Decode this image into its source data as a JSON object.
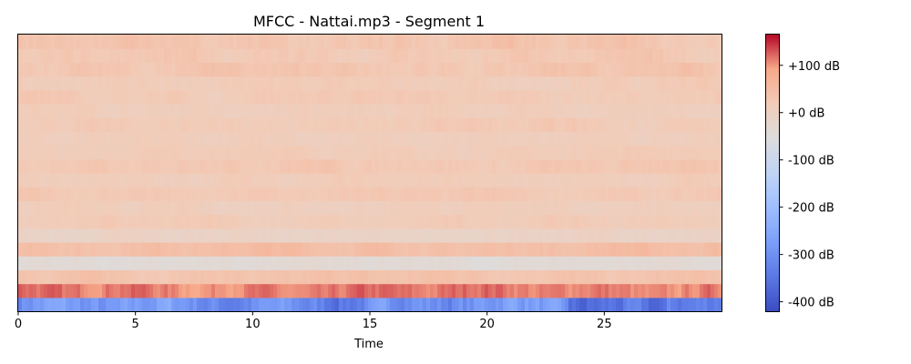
{
  "chart_data": {
    "type": "heatmap",
    "title": "MFCC - Nattai.mp3 - Segment 1",
    "xlabel": "Time",
    "ylabel": "",
    "xlim": [
      0,
      30
    ],
    "x_ticks": [
      0,
      5,
      10,
      15,
      20,
      25
    ],
    "n_coefficients": 20,
    "colormap": "coolwarm",
    "colorbar": {
      "range": [
        -420,
        165
      ],
      "ticks": [
        100,
        0,
        -100,
        -200,
        -300,
        -400
      ],
      "tick_labels": [
        "+100 dB",
        "+0 dB",
        "-100 dB",
        "-200 dB",
        "-300 dB",
        "-400 dB"
      ]
    },
    "row_profile": [
      {
        "coefficient": 0,
        "mean": -300,
        "spread": 60
      },
      {
        "coefficient": 1,
        "mean": 110,
        "spread": 22
      },
      {
        "coefficient": 2,
        "mean": 35,
        "spread": 12
      },
      {
        "coefficient": 3,
        "mean": -40,
        "spread": 10
      },
      {
        "coefficient": 4,
        "mean": 45,
        "spread": 12
      },
      {
        "coefficient": 5,
        "mean": -10,
        "spread": 10
      },
      {
        "coefficient": 6,
        "mean": 15,
        "spread": 10
      },
      {
        "coefficient": 7,
        "mean": 8,
        "spread": 10
      },
      {
        "coefficient": 8,
        "mean": 22,
        "spread": 10
      },
      {
        "coefficient": 9,
        "mean": 12,
        "spread": 10
      },
      {
        "coefficient": 10,
        "mean": 25,
        "spread": 12
      },
      {
        "coefficient": 11,
        "mean": 15,
        "spread": 10
      },
      {
        "coefficient": 12,
        "mean": 8,
        "spread": 10
      },
      {
        "coefficient": 13,
        "mean": 18,
        "spread": 12
      },
      {
        "coefficient": 14,
        "mean": 10,
        "spread": 10
      },
      {
        "coefficient": 15,
        "mean": 20,
        "spread": 12
      },
      {
        "coefficient": 16,
        "mean": 15,
        "spread": 12
      },
      {
        "coefficient": 17,
        "mean": 28,
        "spread": 15
      },
      {
        "coefficient": 18,
        "mean": 22,
        "spread": 15
      },
      {
        "coefficient": 19,
        "mean": 30,
        "spread": 18
      }
    ]
  }
}
